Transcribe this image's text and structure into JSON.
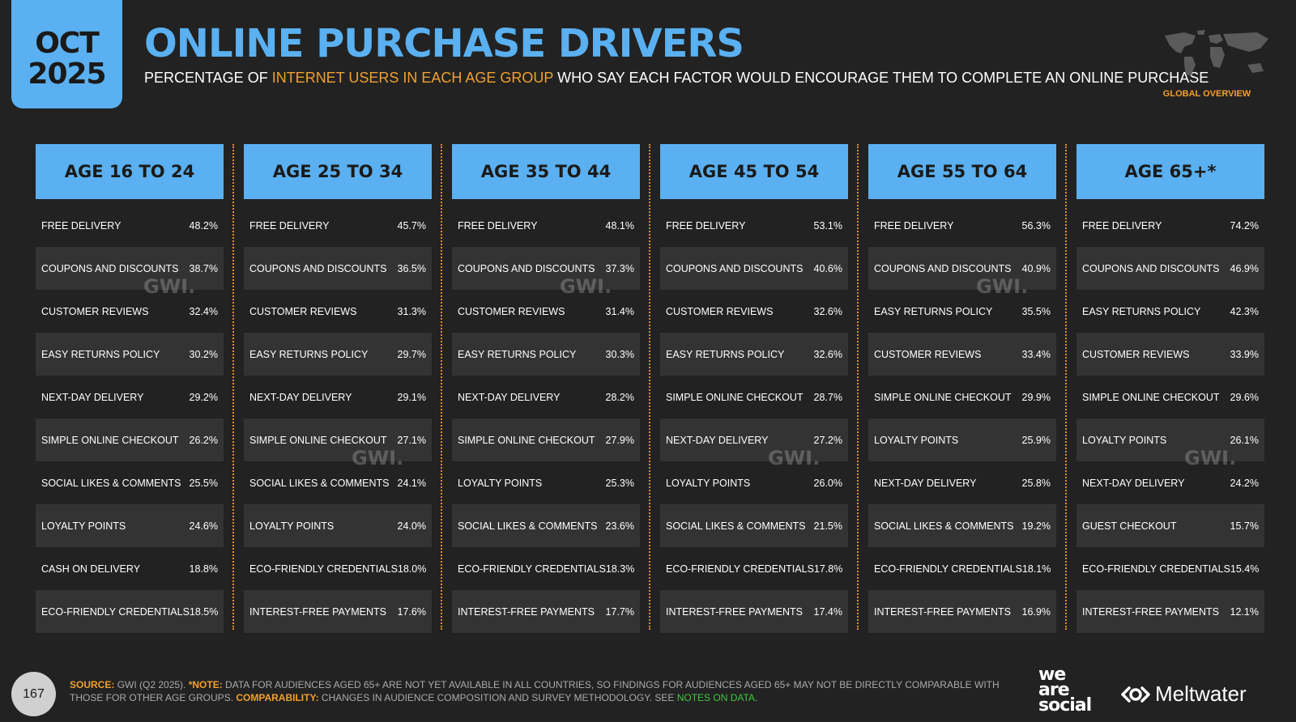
{
  "badge": {
    "month": "OCT",
    "year": "2025"
  },
  "title": "ONLINE PURCHASE DRIVERS",
  "subtitle": {
    "pre": "PERCENTAGE OF ",
    "highlight": "INTERNET USERS IN EACH AGE GROUP",
    "post": " WHO SAY EACH FACTOR WOULD ENCOURAGE THEM TO COMPLETE AN ONLINE PURCHASE"
  },
  "global_overview": "GLOBAL OVERVIEW",
  "watermark": "GWI.",
  "columns": [
    {
      "header": "AGE 16 TO 24",
      "rows": [
        {
          "label": "FREE DELIVERY",
          "value": "48.2%"
        },
        {
          "label": "COUPONS AND DISCOUNTS",
          "value": "38.7%"
        },
        {
          "label": "CUSTOMER REVIEWS",
          "value": "32.4%"
        },
        {
          "label": "EASY RETURNS POLICY",
          "value": "30.2%"
        },
        {
          "label": "NEXT-DAY DELIVERY",
          "value": "29.2%"
        },
        {
          "label": "SIMPLE ONLINE CHECKOUT",
          "value": "26.2%"
        },
        {
          "label": "SOCIAL LIKES & COMMENTS",
          "value": "25.5%"
        },
        {
          "label": "LOYALTY POINTS",
          "value": "24.6%"
        },
        {
          "label": "CASH ON DELIVERY",
          "value": "18.8%"
        },
        {
          "label": "ECO-FRIENDLY CREDENTIALS",
          "value": "18.5%"
        }
      ]
    },
    {
      "header": "AGE 25 TO 34",
      "rows": [
        {
          "label": "FREE DELIVERY",
          "value": "45.7%"
        },
        {
          "label": "COUPONS AND DISCOUNTS",
          "value": "36.5%"
        },
        {
          "label": "CUSTOMER REVIEWS",
          "value": "31.3%"
        },
        {
          "label": "EASY RETURNS POLICY",
          "value": "29.7%"
        },
        {
          "label": "NEXT-DAY DELIVERY",
          "value": "29.1%"
        },
        {
          "label": "SIMPLE ONLINE CHECKOUT",
          "value": "27.1%"
        },
        {
          "label": "SOCIAL LIKES & COMMENTS",
          "value": "24.1%"
        },
        {
          "label": "LOYALTY POINTS",
          "value": "24.0%"
        },
        {
          "label": "ECO-FRIENDLY CREDENTIALS",
          "value": "18.0%"
        },
        {
          "label": "INTEREST-FREE PAYMENTS",
          "value": "17.6%"
        }
      ]
    },
    {
      "header": "AGE 35 TO 44",
      "rows": [
        {
          "label": "FREE DELIVERY",
          "value": "48.1%"
        },
        {
          "label": "COUPONS AND DISCOUNTS",
          "value": "37.3%"
        },
        {
          "label": "CUSTOMER REVIEWS",
          "value": "31.4%"
        },
        {
          "label": "EASY RETURNS POLICY",
          "value": "30.3%"
        },
        {
          "label": "NEXT-DAY DELIVERY",
          "value": "28.2%"
        },
        {
          "label": "SIMPLE ONLINE CHECKOUT",
          "value": "27.9%"
        },
        {
          "label": "LOYALTY POINTS",
          "value": "25.3%"
        },
        {
          "label": "SOCIAL LIKES & COMMENTS",
          "value": "23.6%"
        },
        {
          "label": "ECO-FRIENDLY CREDENTIALS",
          "value": "18.3%"
        },
        {
          "label": "INTEREST-FREE PAYMENTS",
          "value": "17.7%"
        }
      ]
    },
    {
      "header": "AGE 45 TO 54",
      "rows": [
        {
          "label": "FREE DELIVERY",
          "value": "53.1%"
        },
        {
          "label": "COUPONS AND DISCOUNTS",
          "value": "40.6%"
        },
        {
          "label": "CUSTOMER REVIEWS",
          "value": "32.6%"
        },
        {
          "label": "EASY RETURNS POLICY",
          "value": "32.6%"
        },
        {
          "label": "SIMPLE ONLINE CHECKOUT",
          "value": "28.7%"
        },
        {
          "label": "NEXT-DAY DELIVERY",
          "value": "27.2%"
        },
        {
          "label": "LOYALTY POINTS",
          "value": "26.0%"
        },
        {
          "label": "SOCIAL LIKES & COMMENTS",
          "value": "21.5%"
        },
        {
          "label": "ECO-FRIENDLY CREDENTIALS",
          "value": "17.8%"
        },
        {
          "label": "INTEREST-FREE PAYMENTS",
          "value": "17.4%"
        }
      ]
    },
    {
      "header": "AGE 55 TO 64",
      "rows": [
        {
          "label": "FREE DELIVERY",
          "value": "56.3%"
        },
        {
          "label": "COUPONS AND DISCOUNTS",
          "value": "40.9%"
        },
        {
          "label": "EASY RETURNS POLICY",
          "value": "35.5%"
        },
        {
          "label": "CUSTOMER REVIEWS",
          "value": "33.4%"
        },
        {
          "label": "SIMPLE ONLINE CHECKOUT",
          "value": "29.9%"
        },
        {
          "label": "LOYALTY POINTS",
          "value": "25.9%"
        },
        {
          "label": "NEXT-DAY DELIVERY",
          "value": "25.8%"
        },
        {
          "label": "SOCIAL LIKES & COMMENTS",
          "value": "19.2%"
        },
        {
          "label": "ECO-FRIENDLY CREDENTIALS",
          "value": "18.1%"
        },
        {
          "label": "INTEREST-FREE PAYMENTS",
          "value": "16.9%"
        }
      ]
    },
    {
      "header": "AGE 65+*",
      "rows": [
        {
          "label": "FREE DELIVERY",
          "value": "74.2%"
        },
        {
          "label": "COUPONS AND DISCOUNTS",
          "value": "46.9%"
        },
        {
          "label": "EASY RETURNS POLICY",
          "value": "42.3%"
        },
        {
          "label": "CUSTOMER REVIEWS",
          "value": "33.9%"
        },
        {
          "label": "SIMPLE ONLINE CHECKOUT",
          "value": "29.6%"
        },
        {
          "label": "LOYALTY POINTS",
          "value": "26.1%"
        },
        {
          "label": "NEXT-DAY DELIVERY",
          "value": "24.2%"
        },
        {
          "label": "GUEST CHECKOUT",
          "value": "15.7%"
        },
        {
          "label": "ECO-FRIENDLY CREDENTIALS",
          "value": "15.4%"
        },
        {
          "label": "INTEREST-FREE PAYMENTS",
          "value": "12.1%"
        }
      ]
    }
  ],
  "footer": {
    "page": "167",
    "source_label": "SOURCE:",
    "source_name": "GWI",
    "source_text": " (Q2 2025). ",
    "note_label": "*NOTE:",
    "note_text": " DATA FOR AUDIENCES AGED 65+ ARE NOT YET AVAILABLE IN ALL COUNTRIES, SO FINDINGS FOR AUDIENCES AGED 65+ MAY NOT BE DIRECTLY COMPARABLE WITH THOSE FOR OTHER AGE GROUPS. ",
    "comp_label": "COMPARABILITY:",
    "comp_text": " CHANGES IN AUDIENCE COMPOSITION AND SURVEY METHODOLOGY. SEE ",
    "link": "NOTES ON DATA",
    "end": "."
  },
  "brands": {
    "was1": "we",
    "was2": "are",
    "was3": "social",
    "meltwater": "Meltwater"
  },
  "colors": {
    "accent_blue": "#5ab0f0",
    "accent_orange": "#f0a030",
    "background": "#222222",
    "link_green": "#40c840"
  }
}
